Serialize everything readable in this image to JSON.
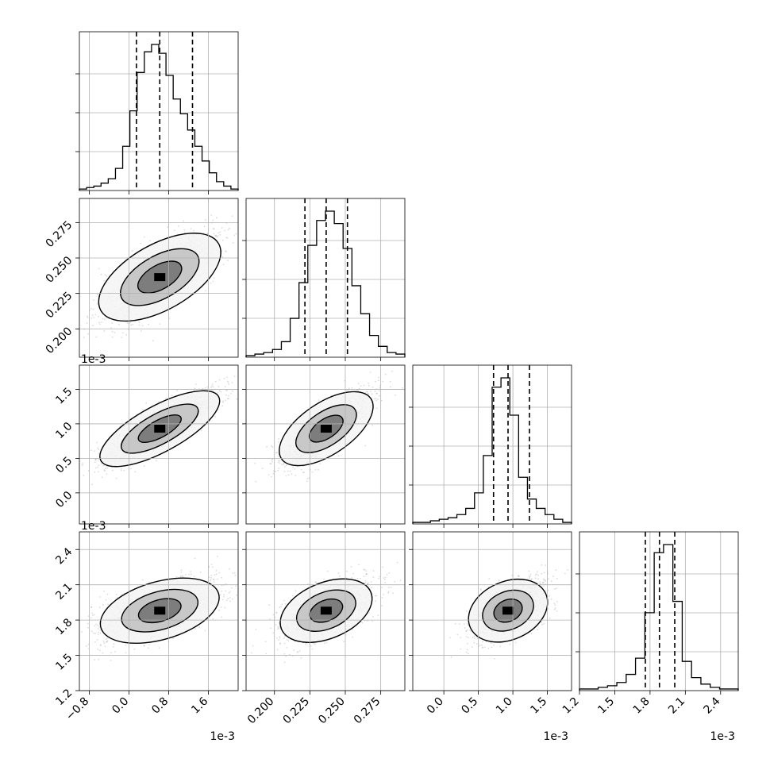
{
  "chart_data": {
    "type": "corner",
    "n_params": 4,
    "params": [
      {
        "range": [
          -1.0,
          2.2
        ],
        "ticks": [
          -0.8,
          0.0,
          0.8,
          1.6
        ],
        "tick_labels": [
          "−0.8",
          "0.0",
          "0.8",
          "1.6"
        ],
        "offset": "1e-3"
      },
      {
        "range": [
          0.18,
          0.292
        ],
        "ticks": [
          0.2,
          0.225,
          0.25,
          0.275
        ],
        "tick_labels": [
          "0.200",
          "0.225",
          "0.250",
          "0.275"
        ],
        "offset": ""
      },
      {
        "range": [
          -0.45,
          1.85
        ],
        "ticks": [
          0.0,
          0.5,
          1.0,
          1.5
        ],
        "tick_labels": [
          "0.0",
          "0.5",
          "1.0",
          "1.5"
        ],
        "offset": "1e-3"
      },
      {
        "range": [
          1.2,
          2.55
        ],
        "ticks": [
          1.2,
          1.5,
          1.8,
          2.1,
          2.4
        ],
        "tick_labels": [
          "1.2",
          "1.5",
          "1.8",
          "2.1",
          "2.4"
        ],
        "offset": "1e-3"
      }
    ],
    "histograms": [
      {
        "counts": [
          1,
          2,
          3,
          5,
          8,
          15,
          30,
          54,
          80,
          94,
          99,
          93,
          78,
          62,
          52,
          41,
          30,
          20,
          12,
          6,
          3,
          1
        ],
        "quantiles": [
          0.15,
          0.62,
          1.28
        ]
      },
      {
        "counts": [
          1,
          2,
          3,
          5,
          10,
          25,
          48,
          72,
          88,
          94,
          86,
          70,
          46,
          28,
          14,
          7,
          3,
          2
        ],
        "quantiles": [
          0.2215,
          0.2365,
          0.2515
        ]
      },
      {
        "counts": [
          1,
          1,
          2,
          3,
          4,
          6,
          10,
          20,
          44,
          88,
          94,
          70,
          30,
          16,
          10,
          6,
          3,
          1
        ],
        "quantiles": [
          0.72,
          0.93,
          1.24
        ]
      },
      {
        "counts": [
          1,
          1,
          2,
          3,
          5,
          10,
          20,
          48,
          85,
          90,
          55,
          18,
          8,
          4,
          2,
          1,
          1
        ],
        "quantiles": [
          1.76,
          1.88,
          2.01
        ]
      }
    ],
    "correlations": [
      [
        1,
        0.75,
        0.85,
        0.55
      ],
      [
        0.75,
        1,
        0.8,
        0.6
      ],
      [
        0.85,
        0.8,
        1,
        0.55
      ],
      [
        0.55,
        0.6,
        0.55,
        1
      ]
    ],
    "grid": true
  }
}
